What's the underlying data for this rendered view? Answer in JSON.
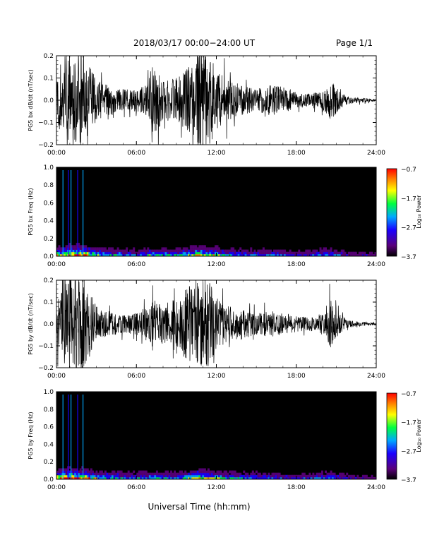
{
  "header": {
    "title": "2018/03/17   00:00−24:00 UT",
    "page": "Page 1/1"
  },
  "footer": {
    "xlabel": "Universal Time (hh:mm)"
  },
  "colors": {
    "trace": "#000000",
    "spectrogram_bg": "#000000",
    "colormap": [
      "#000000",
      "#5a007a",
      "#1a00ff",
      "#00a8ff",
      "#00ff40",
      "#ffff00",
      "#ff8000",
      "#ff0000"
    ]
  },
  "chart_data": [
    {
      "type": "line",
      "ylabel": "PG5 bx dB/dt (nT/sec)",
      "x_ticklabels": [
        "00:00",
        "06:00",
        "12:00",
        "18:00",
        "24:00"
      ],
      "xlim": [
        0,
        24
      ],
      "ylim": [
        -0.2,
        0.2
      ],
      "y_ticklabels": [
        "0.2",
        "0.1",
        "0.0",
        "−0.1",
        "−0.2"
      ],
      "x_unit": "hours UT",
      "envelope": {
        "hours": [
          0,
          0.5,
          1,
          1.5,
          2,
          2.5,
          3,
          4,
          5,
          6,
          6.8,
          7.2,
          8,
          9,
          10,
          10.8,
          11.5,
          12,
          13,
          14,
          15,
          16,
          17,
          18,
          19,
          20,
          20.5,
          21,
          21.5,
          22,
          23,
          24
        ],
        "amplitude": [
          0.12,
          0.2,
          0.22,
          0.22,
          0.22,
          0.16,
          0.09,
          0.07,
          0.05,
          0.05,
          0.07,
          0.17,
          0.09,
          0.1,
          0.16,
          0.22,
          0.2,
          0.13,
          0.09,
          0.07,
          0.05,
          0.07,
          0.06,
          0.035,
          0.03,
          0.04,
          0.1,
          0.06,
          0.03,
          0.015,
          0.01,
          0.005
        ]
      }
    },
    {
      "type": "heatmap",
      "ylabel": "PG5 bx Freq (Hz)",
      "x_ticklabels": [
        "00:00",
        "06:00",
        "12:00",
        "18:00",
        "24:00"
      ],
      "xlim": [
        0,
        24
      ],
      "ylim": [
        0,
        1.0
      ],
      "y_ticklabels": [
        "1.0",
        "0.8",
        "0.6",
        "0.4",
        "0.2",
        "0.0"
      ],
      "colorbar": {
        "label": "Log₁₀ Power",
        "ticks": [
          "−0.7",
          "−1.7",
          "−2.7",
          "−3.7"
        ],
        "range": [
          -3.7,
          -0.7
        ]
      }
    },
    {
      "type": "line",
      "ylabel": "PG5 by dB/dt (nT/sec)",
      "x_ticklabels": [
        "00:00",
        "06:00",
        "12:00",
        "18:00",
        "24:00"
      ],
      "xlim": [
        0,
        24
      ],
      "ylim": [
        -0.2,
        0.2
      ],
      "y_ticklabels": [
        "0.2",
        "0.1",
        "0.0",
        "−0.1",
        "−0.2"
      ],
      "x_unit": "hours UT",
      "envelope": {
        "hours": [
          0,
          0.5,
          1,
          1.5,
          2,
          2.5,
          3,
          4,
          5,
          6,
          6.8,
          7.2,
          8,
          9,
          10,
          10.8,
          11.5,
          12,
          13,
          14,
          15,
          16,
          17,
          18,
          19,
          20,
          20.5,
          21,
          21.5,
          22,
          23,
          24
        ],
        "amplitude": [
          0.1,
          0.18,
          0.22,
          0.22,
          0.22,
          0.15,
          0.08,
          0.06,
          0.04,
          0.05,
          0.08,
          0.12,
          0.09,
          0.12,
          0.18,
          0.22,
          0.2,
          0.12,
          0.08,
          0.07,
          0.05,
          0.06,
          0.05,
          0.035,
          0.03,
          0.05,
          0.12,
          0.07,
          0.03,
          0.015,
          0.01,
          0.005
        ]
      }
    },
    {
      "type": "heatmap",
      "ylabel": "PG5 by Freq (Hz)",
      "x_ticklabels": [
        "00:00",
        "06:00",
        "12:00",
        "18:00",
        "24:00"
      ],
      "xlim": [
        0,
        24
      ],
      "ylim": [
        0,
        1.0
      ],
      "y_ticklabels": [
        "1.0",
        "0.8",
        "0.6",
        "0.4",
        "0.2",
        "0.0"
      ],
      "colorbar": {
        "label": "Log₁₀ Power",
        "ticks": [
          "−0.7",
          "−1.7",
          "−2.7",
          "−3.7"
        ],
        "range": [
          -3.7,
          -0.7
        ]
      }
    }
  ]
}
